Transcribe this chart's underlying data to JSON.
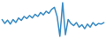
{
  "values": [
    0.5,
    -0.8,
    0.3,
    -1.0,
    0.5,
    -0.5,
    1.0,
    0.2,
    1.5,
    0.8,
    1.8,
    1.0,
    2.2,
    1.5,
    2.8,
    2.0,
    3.2,
    2.5,
    3.8,
    4.5,
    1.5,
    -5.0,
    6.0,
    -4.5,
    0.5,
    -0.8,
    -1.5,
    -0.5,
    -2.0,
    -1.2,
    -2.5,
    -1.0,
    -2.0,
    -0.5,
    -1.5,
    -0.8,
    -1.0,
    -0.5
  ],
  "line_color": "#3a8cc4",
  "line_width": 1.1,
  "background_color": "#ffffff"
}
